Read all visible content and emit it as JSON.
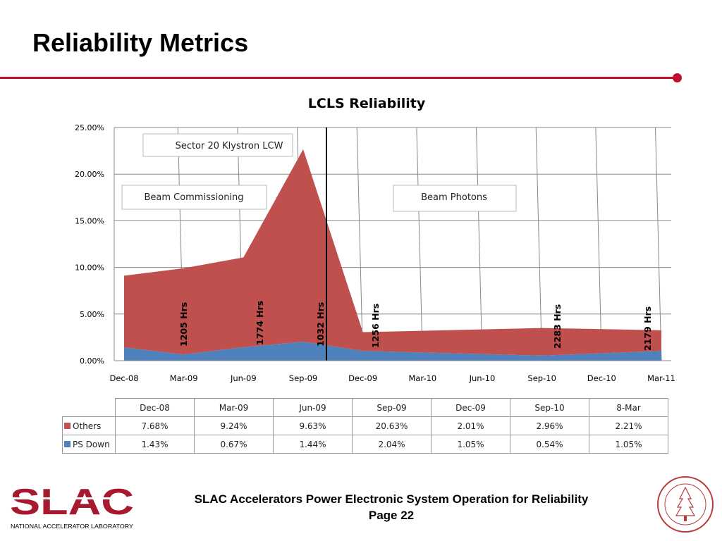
{
  "slide": {
    "title": "Reliability Metrics",
    "footer_line1": "SLAC Accelerators Power Electronic System Operation for Reliability",
    "footer_line2": "Page 22",
    "accent": "#c0102c"
  },
  "logos": {
    "slac": "SLAC",
    "slac_sub": "NATIONAL ACCELERATOR LABORATORY",
    "seal": "LELAND STANFORD JUNIOR UNIVERSITY 1891"
  },
  "chart_data": {
    "type": "area",
    "stacked": true,
    "title": "LCLS Reliability",
    "x_ticks": [
      "Dec-08",
      "Mar-09",
      "Jun-09",
      "Sep-09",
      "Dec-09",
      "Mar-10",
      "Jun-10",
      "Sep-10",
      "Dec-10",
      "Mar-11"
    ],
    "y_ticks": [
      "0.00%",
      "5.00%",
      "10.00%",
      "15.00%",
      "20.00%",
      "25.00%"
    ],
    "ylim": [
      0,
      25
    ],
    "grid": true,
    "x": [
      "Dec-08",
      "Mar-09",
      "Jun-09",
      "Sep-09",
      "Dec-09",
      "Sep-10",
      "Mar-11"
    ],
    "series": [
      {
        "name": "PS Down",
        "color": "#4f81bd",
        "values": [
          1.43,
          0.67,
          1.44,
          2.04,
          1.05,
          0.54,
          1.05
        ]
      },
      {
        "name": "Others",
        "color": "#c0504d",
        "values": [
          7.68,
          9.24,
          9.63,
          20.63,
          2.01,
          2.96,
          2.21
        ]
      }
    ],
    "annotations": {
      "boxes": [
        "Sector 20 Klystron LCW",
        "Beam Commissioning",
        "Beam Photons"
      ],
      "hours": [
        {
          "label": "1205 Hrs",
          "x": "Mar-09"
        },
        {
          "label": "1774 Hrs",
          "x": "Jun-09"
        },
        {
          "label": "1032 Hrs",
          "x": "Sep-09"
        },
        {
          "label": "1256 Hrs",
          "x": "Dec-09"
        },
        {
          "label": "2283 Hrs",
          "x": "Sep-10"
        },
        {
          "label": "2179 Hrs",
          "x": "Mar-11"
        }
      ]
    },
    "table": {
      "columns": [
        "Dec-08",
        "Mar-09",
        "Jun-09",
        "Sep-09",
        "Dec-09",
        "Sep-10",
        "8-Mar"
      ],
      "rows": [
        {
          "label": "Others",
          "values": [
            "7.68%",
            "9.24%",
            "9.63%",
            "20.63%",
            "2.01%",
            "2.96%",
            "2.21%"
          ]
        },
        {
          "label": "PS Down",
          "values": [
            "1.43%",
            "0.67%",
            "1.44%",
            "2.04%",
            "1.05%",
            "0.54%",
            "1.05%"
          ]
        }
      ]
    }
  }
}
